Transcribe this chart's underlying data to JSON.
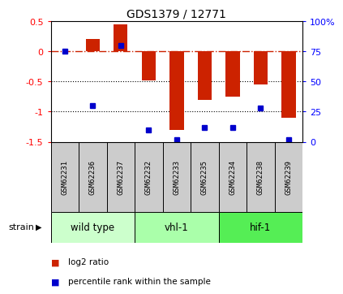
{
  "title": "GDS1379 / 12771",
  "samples": [
    "GSM62231",
    "GSM62236",
    "GSM62237",
    "GSM62232",
    "GSM62233",
    "GSM62235",
    "GSM62234",
    "GSM62238",
    "GSM62239"
  ],
  "log2_ratio": [
    0.0,
    0.2,
    0.45,
    -0.48,
    -1.3,
    -0.8,
    -0.75,
    -0.55,
    -1.1
  ],
  "percentile_rank": [
    75,
    30,
    80,
    10,
    2,
    12,
    12,
    28,
    2
  ],
  "ylim_left": [
    -1.5,
    0.5
  ],
  "ylim_right": [
    0,
    100
  ],
  "yticks_left": [
    -1.5,
    -1.0,
    -0.5,
    0.0,
    0.5
  ],
  "yticks_right": [
    0,
    25,
    50,
    75,
    100
  ],
  "groups": [
    {
      "label": "wild type",
      "indices": [
        0,
        1,
        2
      ],
      "color": "#ccffcc"
    },
    {
      "label": "vhl-1",
      "indices": [
        3,
        4,
        5
      ],
      "color": "#aaffaa"
    },
    {
      "label": "hif-1",
      "indices": [
        6,
        7,
        8
      ],
      "color": "#55ee55"
    }
  ],
  "bar_color": "#cc2200",
  "dot_color": "#0000cc",
  "zero_line_color": "#cc2200",
  "grid_color": "#000000",
  "bg_color": "#ffffff",
  "sample_box_color": "#cccccc",
  "bar_width": 0.5
}
